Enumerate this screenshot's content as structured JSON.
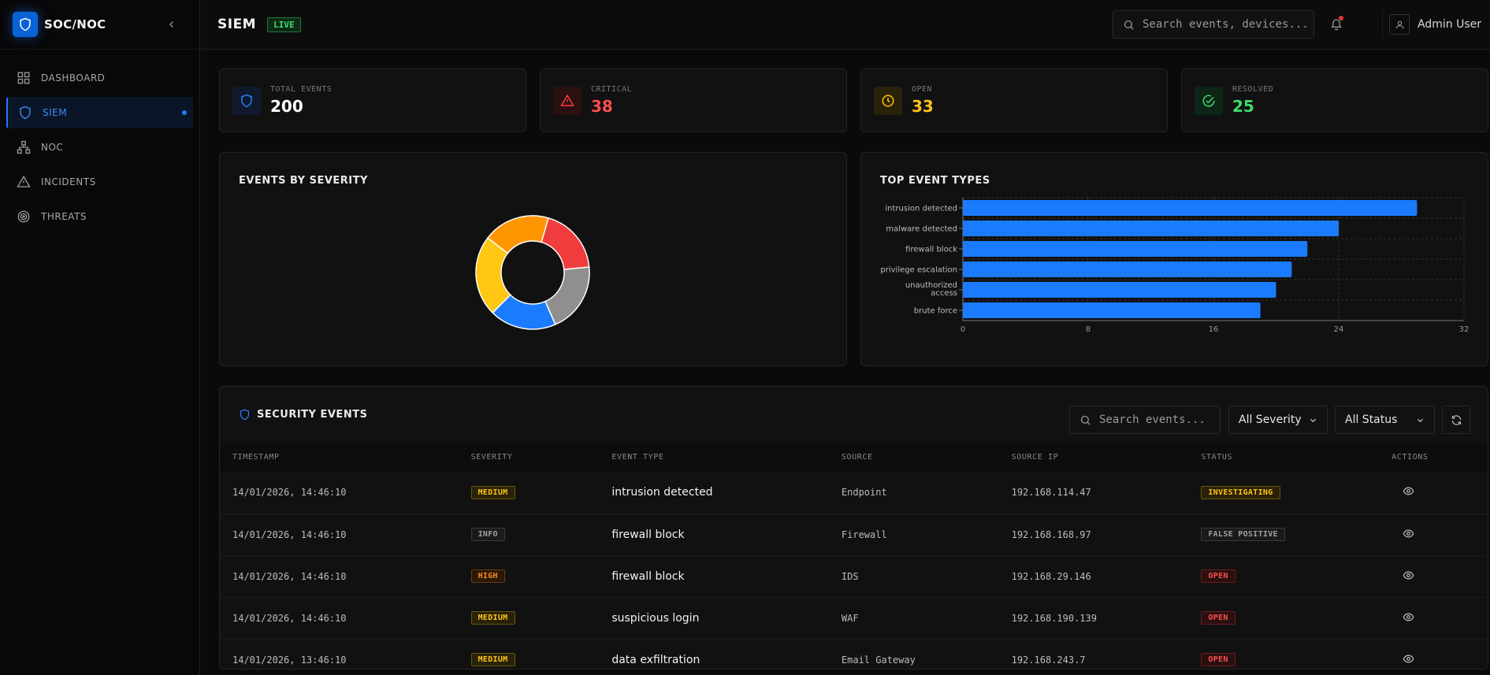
{
  "brand": {
    "title": "SOC/NOC"
  },
  "sidebar": {
    "items": [
      {
        "label": "DASHBOARD",
        "icon": "grid-icon"
      },
      {
        "label": "SIEM",
        "icon": "shield-icon",
        "active": true
      },
      {
        "label": "NOC",
        "icon": "network-icon"
      },
      {
        "label": "INCIDENTS",
        "icon": "warning-icon"
      },
      {
        "label": "THREATS",
        "icon": "target-icon"
      }
    ]
  },
  "header": {
    "title": "SIEM",
    "live": "LIVE",
    "search_placeholder": "Search events, devices...",
    "user_name": "Admin User"
  },
  "stats": [
    {
      "label": "TOTAL EVENTS",
      "value": "200",
      "color": "#ffffff",
      "accent": "#2a7fff",
      "bg": "#0e1a2c",
      "icon": "shield-icon"
    },
    {
      "label": "CRITICAL",
      "value": "38",
      "color": "#ff4d4d",
      "accent": "#ff3b3b",
      "bg": "#2a1010",
      "icon": "warning-icon"
    },
    {
      "label": "OPEN",
      "value": "33",
      "color": "#ffc21a",
      "accent": "#ffc21a",
      "bg": "#2a2208",
      "icon": "clock-icon"
    },
    {
      "label": "RESOLVED",
      "value": "25",
      "color": "#3ddc6a",
      "accent": "#3ddc6a",
      "bg": "#0d2416",
      "icon": "check-circle-icon"
    }
  ],
  "chart_data": [
    {
      "type": "pie",
      "title": "EVENTS BY SEVERITY",
      "slices": [
        {
          "value": 38,
          "color": "#f03c3c"
        },
        {
          "value": 40,
          "color": "#8f8f8f"
        },
        {
          "value": 38,
          "color": "#1a7bff"
        },
        {
          "value": 46,
          "color": "#ffc612"
        },
        {
          "value": 38,
          "color": "#ff9500"
        }
      ]
    },
    {
      "type": "bar",
      "orientation": "horizontal",
      "title": "TOP EVENT TYPES",
      "categories": [
        "intrusion detected",
        "malware detected",
        "firewall block",
        "privilege escalation",
        "unauthorized access",
        "brute force"
      ],
      "values": [
        29,
        24,
        22,
        21,
        20,
        19
      ],
      "xlim": [
        0,
        32
      ],
      "xticks": [
        0,
        8,
        16,
        24,
        32
      ],
      "color": "#1a7bff",
      "grid": true
    }
  ],
  "events": {
    "title": "SECURITY EVENTS",
    "search_placeholder": "Search events...",
    "severity_filter": "All Severity",
    "status_filter": "All Status",
    "columns": [
      "TIMESTAMP",
      "SEVERITY",
      "EVENT TYPE",
      "SOURCE",
      "SOURCE IP",
      "STATUS",
      "ACTIONS"
    ],
    "rows": [
      {
        "timestamp": "14/01/2026, 14:46:10",
        "severity": "MEDIUM",
        "type": "intrusion detected",
        "source": "Endpoint",
        "ip": "192.168.114.47",
        "status": "INVESTIGATING"
      },
      {
        "timestamp": "14/01/2026, 14:46:10",
        "severity": "INFO",
        "type": "firewall block",
        "source": "Firewall",
        "ip": "192.168.168.97",
        "status": "FALSE POSITIVE"
      },
      {
        "timestamp": "14/01/2026, 14:46:10",
        "severity": "HIGH",
        "type": "firewall block",
        "source": "IDS",
        "ip": "192.168.29.146",
        "status": "OPEN"
      },
      {
        "timestamp": "14/01/2026, 14:46:10",
        "severity": "MEDIUM",
        "type": "suspicious login",
        "source": "WAF",
        "ip": "192.168.190.139",
        "status": "OPEN"
      },
      {
        "timestamp": "14/01/2026, 13:46:10",
        "severity": "MEDIUM",
        "type": "data exfiltration",
        "source": "Email Gateway",
        "ip": "192.168.243.7",
        "status": "OPEN"
      }
    ]
  },
  "badge_colors": {
    "MEDIUM": {
      "fg": "#ffc21a",
      "bg": "#2a2208",
      "border": "#6b5410"
    },
    "INFO": {
      "fg": "#a0a0a0",
      "bg": "#1a1a1a",
      "border": "#3a3a3a"
    },
    "HIGH": {
      "fg": "#ff8a1e",
      "bg": "#2a1808",
      "border": "#6b3a10"
    },
    "INVESTIGATING": {
      "fg": "#ffc21a",
      "bg": "#2a2208",
      "border": "#6b5410"
    },
    "FALSE POSITIVE": {
      "fg": "#a0a0a0",
      "bg": "#1a1a1a",
      "border": "#3a3a3a"
    },
    "OPEN": {
      "fg": "#ff4d4d",
      "bg": "#2a1010",
      "border": "#6b1c1c"
    }
  }
}
